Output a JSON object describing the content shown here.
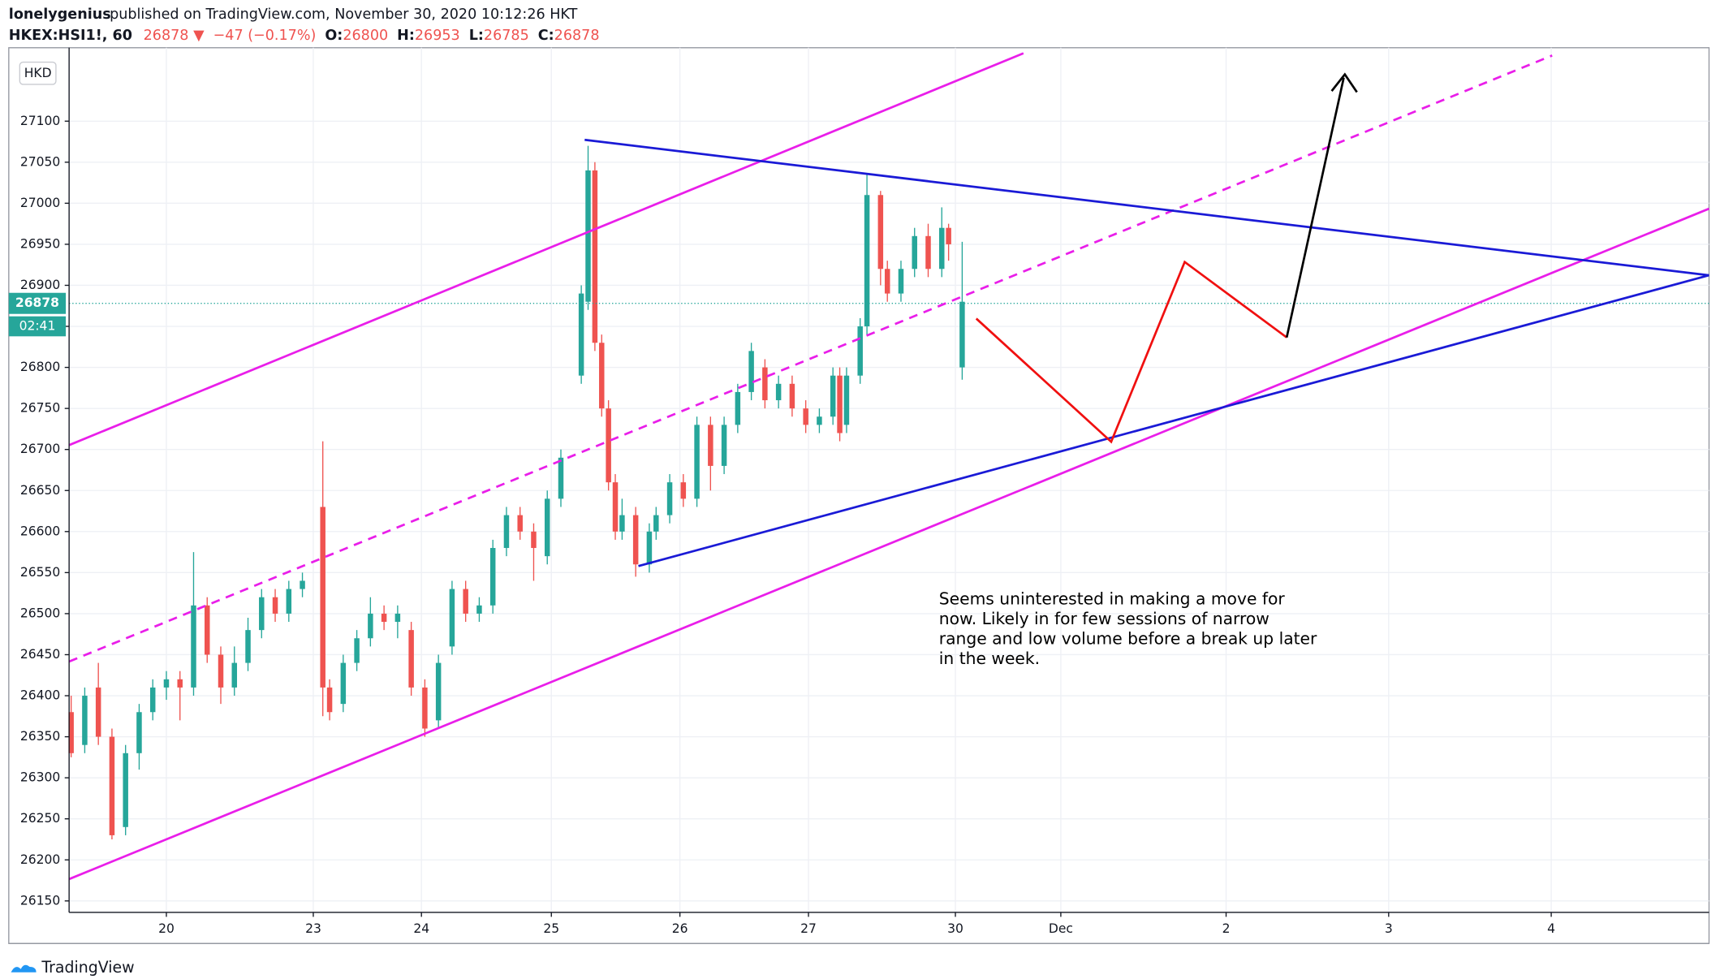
{
  "header": {
    "author": "lonelygenius",
    "published": "published on TradingView.com, November 30, 2020 10:12:26 HKT",
    "symbol": "HKEX:HSI1!, 60",
    "price": "26878",
    "arrow": "▼",
    "change": "−47 (−0.17%)",
    "o_label": "O:",
    "o": "26800",
    "h_label": "H:",
    "h": "26953",
    "l_label": "L:",
    "l": "26785",
    "c_label": "C:",
    "c": "26878"
  },
  "currency": "HKD",
  "countdown": "02:41",
  "annotation": [
    "Seems uninterested in making a move for",
    "now. Likely in for few sessions of narrow",
    "range and low volume before a break up later",
    "in the week."
  ],
  "footer": "TradingView",
  "chart_data": {
    "type": "candlestick",
    "up_color": "#26a69a",
    "down_color": "#ef5350",
    "x": [
      0,
      2,
      4,
      6,
      8,
      10,
      12,
      14,
      16,
      18,
      20,
      22,
      24,
      26,
      28,
      30,
      32,
      34,
      37,
      38,
      40,
      42,
      44,
      46,
      48,
      50,
      52,
      54,
      56,
      58,
      60,
      62,
      64,
      66,
      68,
      70,
      72,
      75,
      76,
      77,
      78,
      79,
      80,
      81,
      83,
      85,
      86,
      88,
      90,
      92,
      94,
      96,
      98,
      100,
      102,
      104,
      106,
      108,
      110,
      112,
      113,
      114,
      116,
      117,
      119,
      120,
      122,
      124,
      126,
      128,
      129,
      131
    ],
    "open": [
      26380,
      26340,
      26410,
      26350,
      26240,
      26330,
      26380,
      26410,
      26420,
      26410,
      26510,
      26450,
      26410,
      26440,
      26480,
      26520,
      26500,
      26530,
      26630,
      26410,
      26390,
      26440,
      26470,
      26500,
      26490,
      26480,
      26410,
      26370,
      26460,
      26530,
      26500,
      26510,
      26580,
      26620,
      26600,
      26570,
      26640,
      26790,
      26880,
      27040,
      26830,
      26750,
      26660,
      26600,
      26620,
      26560,
      26600,
      26620,
      26660,
      26640,
      26730,
      26680,
      26730,
      26770,
      26800,
      26760,
      26780,
      26750,
      26730,
      26740,
      26790,
      26730,
      26790,
      26850,
      27010,
      26920,
      26890,
      26920,
      26960,
      26920,
      26970,
      26800
    ],
    "high": [
      26400,
      26410,
      26440,
      26360,
      26340,
      26390,
      26420,
      26430,
      26430,
      26575,
      26520,
      26460,
      26460,
      26495,
      26530,
      26530,
      26540,
      26550,
      26710,
      26420,
      26450,
      26480,
      26520,
      26510,
      26510,
      26490,
      26420,
      26450,
      26540,
      26540,
      26520,
      26590,
      26630,
      26630,
      26610,
      26650,
      26700,
      26900,
      27070,
      27050,
      26840,
      26760,
      26670,
      26640,
      26630,
      26610,
      26630,
      26670,
      26670,
      26740,
      26740,
      26740,
      26780,
      26830,
      26810,
      26790,
      26790,
      26760,
      26750,
      26800,
      26800,
      26800,
      26860,
      27035,
      27015,
      26930,
      26930,
      26970,
      26975,
      26995,
      26975,
      26953
    ],
    "low": [
      26325,
      26330,
      26340,
      26225,
      26230,
      26310,
      26370,
      26395,
      26370,
      26400,
      26440,
      26390,
      26400,
      26430,
      26470,
      26490,
      26490,
      26520,
      26375,
      26370,
      26380,
      26430,
      26460,
      26480,
      26470,
      26400,
      26350,
      26360,
      26450,
      26490,
      26490,
      26500,
      26570,
      26590,
      26540,
      26560,
      26630,
      26780,
      26870,
      26820,
      26740,
      26650,
      26590,
      26590,
      26545,
      26550,
      26590,
      26610,
      26630,
      26630,
      26650,
      26670,
      26720,
      26760,
      26750,
      26750,
      26740,
      26720,
      26720,
      26730,
      26710,
      26720,
      26780,
      26840,
      26900,
      26880,
      26880,
      26910,
      26910,
      26910,
      26930,
      26785
    ],
    "close": [
      26330,
      26400,
      26350,
      26230,
      26330,
      26380,
      26410,
      26420,
      26410,
      26510,
      26450,
      26410,
      26440,
      26480,
      26520,
      26500,
      26530,
      26540,
      26410,
      26380,
      26440,
      26470,
      26500,
      26490,
      26500,
      26410,
      26360,
      26440,
      26530,
      26500,
      26510,
      26580,
      26620,
      26600,
      26580,
      26640,
      26690,
      26890,
      27040,
      26830,
      26750,
      26660,
      26600,
      26620,
      26560,
      26600,
      26620,
      26660,
      26640,
      26730,
      26680,
      26730,
      26770,
      26820,
      26760,
      26780,
      26750,
      26730,
      26740,
      26790,
      26720,
      26790,
      26850,
      27010,
      26920,
      26890,
      26920,
      26960,
      26920,
      26970,
      26950,
      26880
    ],
    "last_price": 26878,
    "ylim": [
      26136,
      27180
    ],
    "yticks": [
      26150,
      26200,
      26250,
      26300,
      26350,
      26400,
      26450,
      26500,
      26550,
      26600,
      26650,
      26700,
      26750,
      26800,
      26850,
      26900,
      26950,
      27000,
      27050,
      27100
    ],
    "xlim": [
      -0.3,
      240.8
    ],
    "xticks": [
      {
        "value": 14,
        "label": "20"
      },
      {
        "value": 35.6,
        "label": "23"
      },
      {
        "value": 51.5,
        "label": "24"
      },
      {
        "value": 70.6,
        "label": "25"
      },
      {
        "value": 89.5,
        "label": "26"
      },
      {
        "value": 108.4,
        "label": "27"
      },
      {
        "value": 130,
        "label": "30"
      },
      {
        "value": 145.5,
        "label": "Dec"
      },
      {
        "value": 169.8,
        "label": "2"
      },
      {
        "value": 193.7,
        "label": "3"
      },
      {
        "value": 217.6,
        "label": "4"
      }
    ],
    "grid": true
  }
}
